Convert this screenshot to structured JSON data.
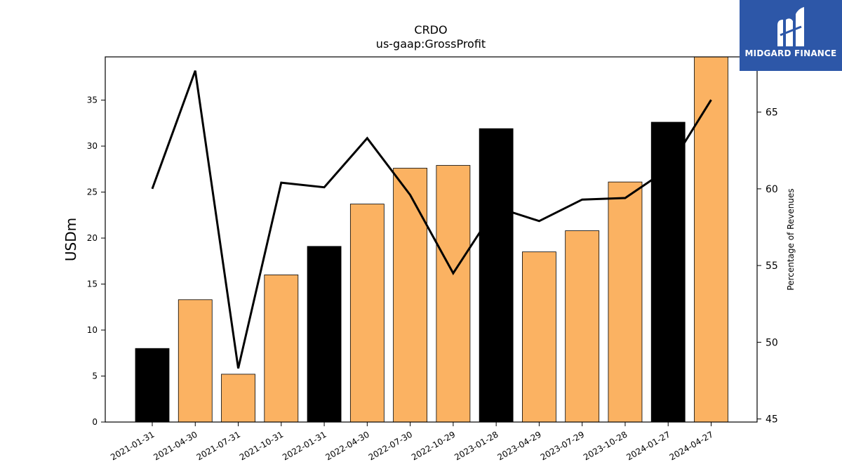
{
  "logo": {
    "text": "MIDGARD FINANCE",
    "bg_color": "#2d57a8"
  },
  "chart_data": {
    "type": "bar",
    "title": "CRDO",
    "subtitle": "us-gaap:GrossProfit",
    "ylabel": "USDm",
    "y2label": "Percentage of Revenues",
    "ylim": [
      0,
      39.7
    ],
    "y2lim": [
      44.8,
      68.6
    ],
    "yticks": [
      0,
      5,
      10,
      15,
      20,
      25,
      30,
      35
    ],
    "y2ticks": [
      45,
      50,
      55,
      60,
      65
    ],
    "categories": [
      "2021-01-31",
      "2021-04-30",
      "2021-07-31",
      "2021-10-31",
      "2022-01-31",
      "2022-04-30",
      "2022-07-30",
      "2022-10-29",
      "2023-01-28",
      "2023-04-29",
      "2023-07-29",
      "2023-10-28",
      "2024-01-27",
      "2024-04-27"
    ],
    "series": [
      {
        "type": "bar",
        "values": [
          8.0,
          13.3,
          5.2,
          16.0,
          19.1,
          23.7,
          27.6,
          27.9,
          31.9,
          18.5,
          20.8,
          26.1,
          32.6,
          39.8
        ],
        "colors": [
          "#000000",
          "#fbb262",
          "#fbb262",
          "#fbb262",
          "#000000",
          "#fbb262",
          "#fbb262",
          "#fbb262",
          "#000000",
          "#fbb262",
          "#fbb262",
          "#fbb262",
          "#000000",
          "#fbb262"
        ]
      },
      {
        "type": "line",
        "axis": "right",
        "color": "#000000",
        "values": [
          60.0,
          67.7,
          48.3,
          60.4,
          60.1,
          63.3,
          59.6,
          54.5,
          58.8,
          57.9,
          59.3,
          59.4,
          61.3,
          65.8
        ]
      }
    ]
  }
}
